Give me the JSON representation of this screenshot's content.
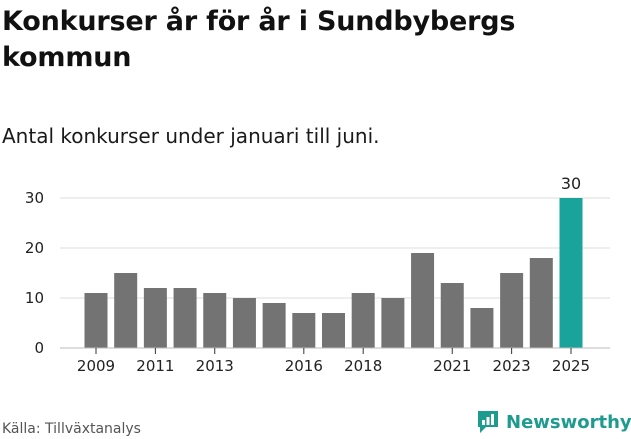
{
  "header": {
    "title": "Konkurser år för år i Sundbybergs kommun",
    "subtitle": "Antal konkurser under januari till juni."
  },
  "footer": {
    "source": "Källa: Tillväxtanalys",
    "brand": "Newsworthy",
    "brand_icon": "newsworthy-logo-icon"
  },
  "colors": {
    "bar": "#737373",
    "highlight": "#1aa39a",
    "grid": "#dddddd",
    "brand": "#1e9b8f"
  },
  "chart_data": {
    "type": "bar",
    "title": "Konkurser år för år i Sundbybergs kommun",
    "subtitle": "Antal konkurser under januari till juni.",
    "xlabel": "",
    "ylabel": "",
    "categories": [
      "2009",
      "2010",
      "2011",
      "2012",
      "2013",
      "2014",
      "2015",
      "2016",
      "2017",
      "2018",
      "2019",
      "2020",
      "2021",
      "2022",
      "2023",
      "2024",
      "2025"
    ],
    "values": [
      11,
      15,
      12,
      12,
      11,
      10,
      9,
      7,
      7,
      11,
      10,
      19,
      13,
      8,
      15,
      18,
      30
    ],
    "highlight_index": 16,
    "data_labels": [
      {
        "category": "2025",
        "text": "30"
      }
    ],
    "x_tick_labels": [
      "2009",
      "2011",
      "2013",
      "2016",
      "2018",
      "2021",
      "2023",
      "2025"
    ],
    "y_ticks": [
      0,
      10,
      20,
      30
    ],
    "ylim": [
      0,
      30
    ],
    "grid": true,
    "legend": "none"
  }
}
